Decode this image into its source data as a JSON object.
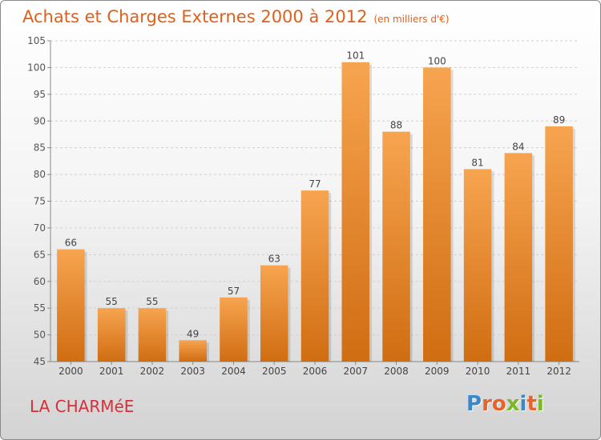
{
  "header": {
    "title": "Achats et Charges Externes 2000 à 2012",
    "unit": "(en milliers d'€)"
  },
  "footer": {
    "commune": "LA CHARMéE",
    "logo_text": "Proxiti"
  },
  "colors": {
    "bar_top": "#f7a450",
    "bar_bottom": "#d06d12",
    "title": "#e0601a",
    "commune": "#d4303a",
    "logo": [
      "#3a88c8",
      "#e8632a",
      "#e8632a",
      "#7ab828",
      "#3a88c8",
      "#e8632a",
      "#7ab828"
    ]
  },
  "chart_data": {
    "type": "bar",
    "title": "Achats et Charges Externes 2000 à 2012",
    "categories": [
      "2000",
      "2001",
      "2002",
      "2003",
      "2004",
      "2005",
      "2006",
      "2007",
      "2008",
      "2009",
      "2010",
      "2011",
      "2012"
    ],
    "values": [
      66,
      55,
      55,
      49,
      57,
      63,
      77,
      101,
      88,
      100,
      81,
      84,
      89
    ],
    "ylim": [
      45,
      105
    ],
    "yticks": [
      45,
      50,
      55,
      60,
      65,
      70,
      75,
      80,
      85,
      90,
      95,
      100,
      105
    ],
    "grid": true
  }
}
